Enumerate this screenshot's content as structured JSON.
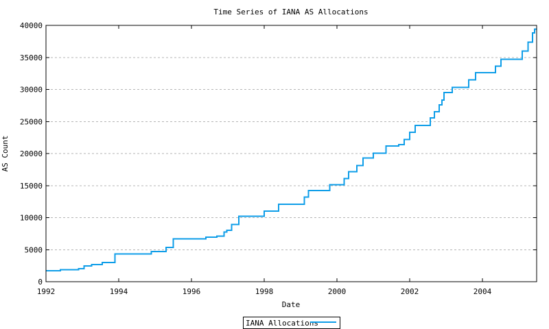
{
  "page": {
    "background": "#ffffff"
  },
  "chart_data": {
    "type": "line",
    "line_style": "step",
    "title": "Time Series of IANA AS Allocations",
    "xlabel": "Date",
    "ylabel": "AS Count",
    "xlim": [
      1992,
      2005.49
    ],
    "ylim": [
      0,
      40000
    ],
    "x_ticks": [
      1992,
      1994,
      1996,
      1998,
      2000,
      2002,
      2004
    ],
    "y_ticks": [
      0,
      5000,
      10000,
      15000,
      20000,
      25000,
      30000,
      35000,
      40000
    ],
    "grid": "horizontal-dashed",
    "legend": {
      "label": "IANA Allocations",
      "position": "bottom-center-outside-box"
    },
    "colors": {
      "line": "#0d9de8",
      "grid": "#b4b4b4",
      "axis": "#000000",
      "text": "#000000"
    },
    "series": [
      {
        "name": "IANA Allocations",
        "points": [
          [
            1992.0,
            1700
          ],
          [
            1992.4,
            1850
          ],
          [
            1992.9,
            2050
          ],
          [
            1993.05,
            2480
          ],
          [
            1993.25,
            2650
          ],
          [
            1993.55,
            3000
          ],
          [
            1993.9,
            4330
          ],
          [
            1994.9,
            4680
          ],
          [
            1995.3,
            5330
          ],
          [
            1995.5,
            6680
          ],
          [
            1996.4,
            6930
          ],
          [
            1996.7,
            7110
          ],
          [
            1996.9,
            7750
          ],
          [
            1996.97,
            8000
          ],
          [
            1997.1,
            8930
          ],
          [
            1997.3,
            10210
          ],
          [
            1998.0,
            11000
          ],
          [
            1998.4,
            12110
          ],
          [
            1999.1,
            13200
          ],
          [
            1999.22,
            14200
          ],
          [
            1999.8,
            15130
          ],
          [
            2000.2,
            16100
          ],
          [
            2000.32,
            17160
          ],
          [
            2000.55,
            18130
          ],
          [
            2000.72,
            19300
          ],
          [
            2001.0,
            20050
          ],
          [
            2001.35,
            21200
          ],
          [
            2001.7,
            21400
          ],
          [
            2001.85,
            22190
          ],
          [
            2002.0,
            23340
          ],
          [
            2002.15,
            24400
          ],
          [
            2002.57,
            25540
          ],
          [
            2002.68,
            26500
          ],
          [
            2002.81,
            27600
          ],
          [
            2002.89,
            28320
          ],
          [
            2002.94,
            29500
          ],
          [
            2003.17,
            30300
          ],
          [
            2003.62,
            31500
          ],
          [
            2003.81,
            32600
          ],
          [
            2004.36,
            33660
          ],
          [
            2004.51,
            34700
          ],
          [
            2005.09,
            36000
          ],
          [
            2005.25,
            37400
          ],
          [
            2005.38,
            38840
          ],
          [
            2005.43,
            39400
          ]
        ]
      }
    ]
  }
}
